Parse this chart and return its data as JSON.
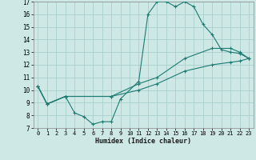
{
  "xlabel": "Humidex (Indice chaleur)",
  "xlim": [
    -0.5,
    23.5
  ],
  "ylim": [
    7,
    17
  ],
  "xticks": [
    0,
    1,
    2,
    3,
    4,
    5,
    6,
    7,
    8,
    9,
    10,
    11,
    12,
    13,
    14,
    15,
    16,
    17,
    18,
    19,
    20,
    21,
    22,
    23
  ],
  "yticks": [
    7,
    8,
    9,
    10,
    11,
    12,
    13,
    14,
    15,
    16,
    17
  ],
  "bg_color": "#cde8e5",
  "grid_color": "#aacfcc",
  "line_color": "#1e7b72",
  "line1_x": [
    0,
    1,
    3,
    4,
    5,
    6,
    7,
    8,
    9,
    11,
    12,
    13,
    14,
    15,
    16,
    17,
    18,
    19,
    20,
    21,
    22,
    23
  ],
  "line1_y": [
    10.3,
    8.9,
    9.5,
    8.2,
    7.9,
    7.3,
    7.5,
    7.5,
    9.3,
    10.7,
    16.0,
    17.0,
    17.0,
    16.6,
    17.0,
    16.6,
    15.2,
    14.4,
    13.2,
    13.0,
    12.9,
    12.5
  ],
  "line2_x": [
    0,
    1,
    3,
    8,
    11,
    13,
    16,
    19,
    21,
    22,
    23
  ],
  "line2_y": [
    10.3,
    8.9,
    9.5,
    9.5,
    10.5,
    11.0,
    12.5,
    13.3,
    13.3,
    13.0,
    12.5
  ],
  "line3_x": [
    0,
    1,
    3,
    8,
    11,
    13,
    16,
    19,
    21,
    22,
    23
  ],
  "line3_y": [
    10.3,
    8.9,
    9.5,
    9.5,
    10.0,
    10.5,
    11.5,
    12.0,
    12.2,
    12.3,
    12.5
  ]
}
